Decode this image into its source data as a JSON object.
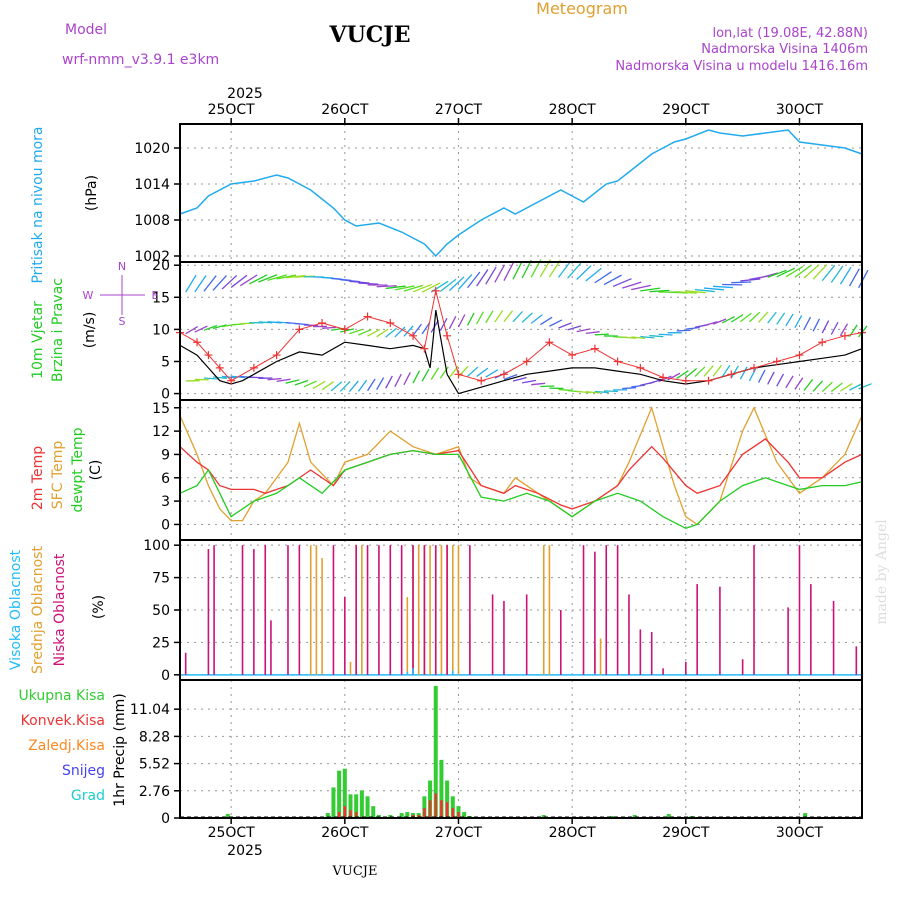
{
  "header": {
    "model_label": "Model",
    "model_name": "wrf-nmm_v3.9.1 e3km",
    "title": "VUCJE",
    "meteogram": "Meteogram",
    "lonlat": "lon,lat (19.08E, 42.88N)",
    "elevation": "Nadmorska Visina 1406m",
    "model_elevation": "Nadmorska Visina u modelu 1416.16m",
    "year": "2025",
    "footer_name": "VUCJE",
    "credit": "made by Angel"
  },
  "colors": {
    "pressure": "#22aaee",
    "temp2m": "#ee3333",
    "sfc": "#e0a030",
    "dew": "#22cc22",
    "high": "#22bbff",
    "mid": "#e0a030",
    "low": "#cc1177",
    "total": "#33cc33",
    "conv": "#ee3333",
    "frz": "#ff8822",
    "snow": "#4444ee",
    "hail": "#22cccc",
    "purple": "#aa44cc"
  },
  "chart_data": [
    {
      "id": "pressure",
      "type": "line",
      "ylabel_title": "Pritisak na nivou mora",
      "ylabel_unit": "(hPa)",
      "ylim": [
        1001,
        1024
      ],
      "yticks": [
        "1002",
        "1008",
        "1014",
        "1020"
      ],
      "x_days": [
        "25OCT",
        "26OCT",
        "27OCT",
        "28OCT",
        "29OCT",
        "30OCT"
      ],
      "xlim_days": [
        24.55,
        30.55
      ],
      "series": [
        {
          "name": "MSLP",
          "x": [
            24.55,
            24.7,
            24.8,
            25.0,
            25.2,
            25.4,
            25.5,
            25.7,
            25.9,
            26.0,
            26.1,
            26.3,
            26.5,
            26.6,
            26.7,
            26.8,
            26.9,
            27.0,
            27.2,
            27.4,
            27.5,
            27.7,
            27.9,
            28.0,
            28.1,
            28.3,
            28.4,
            28.5,
            28.7,
            28.9,
            29.0,
            29.2,
            29.3,
            29.5,
            29.7,
            29.9,
            30.0,
            30.2,
            30.4,
            30.55
          ],
          "y": [
            1009,
            1010,
            1012,
            1014,
            1014.5,
            1015.5,
            1015,
            1013,
            1010,
            1008,
            1007,
            1007.5,
            1006,
            1005,
            1004,
            1002,
            1004,
            1005.5,
            1008,
            1010,
            1009,
            1011,
            1013,
            1012,
            1011,
            1014,
            1014.5,
            1016,
            1019,
            1021,
            1021.5,
            1023,
            1022.5,
            1022,
            1022.5,
            1023,
            1021,
            1020.5,
            1020,
            1019
          ]
        }
      ]
    },
    {
      "id": "wind",
      "type": "line",
      "ylabel_title": "10m Vjetar",
      "ylabel_title2": "Brzina i Pravac",
      "ylabel_unit": "(m/s)",
      "compass": [
        "N",
        "E",
        "W",
        "S"
      ],
      "ylim": [
        -1,
        20.5
      ],
      "yticks": [
        "0",
        "5",
        "10",
        "15",
        "20"
      ],
      "series": [
        {
          "name": "speed",
          "x": [
            24.55,
            24.7,
            24.8,
            24.9,
            25.0,
            25.1,
            25.2,
            25.4,
            25.6,
            25.8,
            26.0,
            26.2,
            26.4,
            26.6,
            26.7,
            26.75,
            26.78,
            26.8,
            26.85,
            26.9,
            27.0,
            27.2,
            27.4,
            27.6,
            27.8,
            28.0,
            28.2,
            28.4,
            28.6,
            28.8,
            29.0,
            29.2,
            29.4,
            29.6,
            29.8,
            30.0,
            30.2,
            30.4,
            30.55
          ],
          "y": [
            7.5,
            6,
            4,
            2,
            1.5,
            2,
            3,
            5,
            6.5,
            6,
            8,
            7.5,
            7,
            7.5,
            7,
            4,
            9,
            13,
            8,
            3,
            0,
            1,
            2,
            3,
            3.5,
            4,
            4,
            3.5,
            3,
            2,
            1.5,
            2,
            3,
            4,
            4.5,
            5,
            5.5,
            6,
            7
          ]
        },
        {
          "name": "gust",
          "x": [
            24.55,
            24.7,
            24.8,
            24.9,
            25.0,
            25.2,
            25.4,
            25.6,
            25.8,
            26.0,
            26.2,
            26.4,
            26.6,
            26.7,
            26.8,
            26.9,
            27.0,
            27.2,
            27.4,
            27.6,
            27.8,
            28.0,
            28.2,
            28.4,
            28.6,
            28.8,
            29.0,
            29.2,
            29.4,
            29.6,
            29.8,
            30.0,
            30.2,
            30.4,
            30.55
          ],
          "y": [
            9.5,
            8,
            6,
            4,
            2,
            4,
            6,
            10,
            11,
            10,
            12,
            11,
            9,
            7,
            16,
            9,
            3,
            2,
            3,
            5,
            8,
            6,
            7,
            5,
            4,
            2.5,
            2,
            2,
            3,
            4,
            5,
            6,
            8,
            9,
            9.5
          ]
        }
      ]
    },
    {
      "id": "temperature",
      "type": "line",
      "ylabel_title": "2m Temp",
      "ylabel_title2": "SFC Temp",
      "ylabel_title3": "dewpt Temp",
      "ylabel_unit": "(C)",
      "ylim": [
        -2,
        16
      ],
      "yticks": [
        "0",
        "3",
        "6",
        "9",
        "12",
        "15"
      ],
      "series": [
        {
          "name": "2m Temp",
          "x": [
            24.55,
            24.7,
            24.8,
            24.9,
            25.0,
            25.2,
            25.3,
            25.5,
            25.7,
            25.9,
            26.0,
            26.2,
            26.4,
            26.6,
            26.8,
            27.0,
            27.2,
            27.4,
            27.5,
            27.7,
            27.9,
            28.0,
            28.2,
            28.4,
            28.5,
            28.7,
            28.8,
            29.0,
            29.1,
            29.3,
            29.5,
            29.7,
            29.9,
            30.0,
            30.2,
            30.4,
            30.55
          ],
          "y": [
            10,
            8,
            7,
            5,
            4.5,
            4.5,
            4,
            5,
            7,
            5,
            7,
            8,
            9,
            9.5,
            9,
            9.5,
            5,
            4,
            5,
            4,
            2.5,
            2,
            3,
            5,
            7,
            10,
            8.5,
            5,
            4,
            5,
            9,
            11,
            8,
            6,
            6,
            8,
            9
          ]
        },
        {
          "name": "SFC Temp",
          "x": [
            24.55,
            24.7,
            24.8,
            24.9,
            25.0,
            25.1,
            25.2,
            25.3,
            25.5,
            25.6,
            25.7,
            25.9,
            26.0,
            26.2,
            26.4,
            26.6,
            26.8,
            27.0,
            27.1,
            27.2,
            27.4,
            27.5,
            27.7,
            27.9,
            28.0,
            28.2,
            28.4,
            28.5,
            28.7,
            28.9,
            29.0,
            29.1,
            29.3,
            29.5,
            29.6,
            29.8,
            30.0,
            30.2,
            30.4,
            30.55
          ],
          "y": [
            14,
            9,
            5,
            2,
            0.5,
            0.5,
            3,
            4,
            8,
            13,
            8,
            5,
            8,
            9,
            12,
            10,
            9,
            10,
            6,
            5,
            4,
            6,
            4,
            2,
            1,
            3,
            5,
            8,
            15,
            5,
            1,
            0,
            3,
            12,
            15,
            8,
            4,
            6,
            9,
            14
          ]
        },
        {
          "name": "dewpt Temp",
          "x": [
            24.55,
            24.7,
            24.8,
            24.9,
            25.0,
            25.2,
            25.4,
            25.6,
            25.8,
            26.0,
            26.2,
            26.4,
            26.6,
            26.8,
            27.0,
            27.2,
            27.4,
            27.6,
            27.8,
            28.0,
            28.2,
            28.4,
            28.6,
            28.8,
            29.0,
            29.1,
            29.3,
            29.5,
            29.7,
            29.9,
            30.0,
            30.2,
            30.4,
            30.55
          ],
          "y": [
            4,
            5,
            7,
            4,
            1,
            3,
            4,
            6,
            4,
            7,
            8,
            9,
            9.5,
            9,
            9,
            3.5,
            3,
            4,
            3,
            1,
            3,
            4,
            3,
            1,
            -0.5,
            0,
            3,
            5,
            6,
            5,
            4.5,
            5,
            5,
            5.5
          ]
        }
      ]
    },
    {
      "id": "clouds",
      "type": "bar",
      "ylabel_titles": [
        "Visoka Oblacnost",
        "Srednja Oblacnost",
        "Niska Oblacnost"
      ],
      "ylabel_unit": "(%)",
      "ylim": [
        -4,
        104
      ],
      "yticks": [
        "0",
        "25",
        "50",
        "75",
        "100"
      ],
      "series": [
        {
          "name": "Niska",
          "x": [
            24.6,
            24.8,
            24.85,
            25.1,
            25.2,
            25.3,
            25.35,
            25.5,
            25.6,
            25.9,
            26.0,
            26.1,
            26.2,
            26.3,
            26.4,
            26.5,
            26.6,
            26.7,
            26.8,
            26.9,
            27.1,
            27.3,
            27.4,
            27.6,
            27.9,
            28.1,
            28.2,
            28.3,
            28.4,
            28.5,
            28.6,
            28.7,
            28.8,
            29.0,
            29.1,
            29.3,
            29.5,
            29.6,
            29.9,
            30.0,
            30.1,
            30.3,
            30.5
          ],
          "values": [
            17,
            97,
            100,
            100,
            97,
            100,
            42,
            100,
            100,
            100,
            60,
            100,
            100,
            100,
            100,
            100,
            100,
            100,
            100,
            100,
            100,
            62,
            57,
            62,
            50,
            100,
            95,
            100,
            100,
            62,
            35,
            33,
            5,
            10,
            70,
            68,
            12,
            100,
            52,
            100,
            70,
            57,
            22
          ]
        },
        {
          "name": "Srednja",
          "x": [
            25.7,
            25.75,
            25.8,
            26.05,
            26.1,
            26.15,
            26.55,
            26.6,
            26.65,
            26.7,
            26.75,
            26.8,
            26.85,
            26.9,
            26.95,
            27.0,
            27.1,
            27.75,
            27.8,
            28.2,
            28.25
          ],
          "values": [
            100,
            100,
            90,
            10,
            100,
            100,
            60,
            100,
            100,
            100,
            100,
            100,
            100,
            100,
            100,
            100,
            40,
            100,
            100,
            20,
            28
          ]
        },
        {
          "name": "Visoka",
          "x": [
            26.55,
            26.6,
            26.85,
            26.95,
            28.2
          ],
          "values": [
            2,
            5,
            1,
            3,
            1
          ]
        }
      ]
    },
    {
      "id": "precipitation",
      "type": "bar",
      "legend": [
        "Ukupna Kisa",
        "Konvek.Kisa",
        "Zaledj.Kisa",
        "Snijeg",
        "Grad"
      ],
      "ylabel_unit": "1hr Precip (mm)",
      "ylim": [
        0,
        14
      ],
      "yticks": [
        "0",
        "2.76",
        "5.52",
        "8.28",
        "11.04"
      ],
      "series": [
        {
          "name": "Ukupna Kisa",
          "x": [
            24.97,
            25.85,
            25.9,
            25.95,
            26.0,
            26.05,
            26.1,
            26.15,
            26.2,
            26.25,
            26.3,
            26.4,
            26.5,
            26.55,
            26.6,
            26.65,
            26.7,
            26.75,
            26.8,
            26.85,
            26.9,
            26.95,
            27.0,
            27.05,
            27.1,
            27.75,
            28.35,
            28.55,
            28.85,
            29.05,
            30.05
          ],
          "values": [
            0.4,
            0.5,
            3.1,
            4.8,
            5.0,
            2.4,
            2.4,
            2.8,
            2.2,
            1.2,
            0.3,
            0.3,
            0.5,
            0.6,
            0.5,
            0.5,
            2.2,
            3.8,
            13.4,
            5.9,
            3.8,
            2.2,
            1.2,
            0.6,
            0.2,
            0.3,
            0.2,
            0.3,
            0.4,
            0.2,
            0.5
          ]
        },
        {
          "name": "Konvek.Kisa",
          "x": [
            25.95,
            26.0,
            26.05,
            26.1,
            26.6,
            26.65,
            26.7,
            26.75,
            26.8,
            26.85,
            26.9,
            26.95,
            27.0
          ],
          "values": [
            0.6,
            1.2,
            0.8,
            0.6,
            0.3,
            0.3,
            1.0,
            1.8,
            2.5,
            1.8,
            1.6,
            1.0,
            0.6
          ]
        }
      ]
    }
  ]
}
